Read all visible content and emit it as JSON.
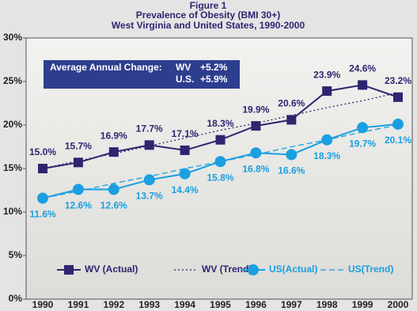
{
  "chart_data": {
    "type": "line",
    "title": "Figure 1",
    "subtitle": [
      "Prevalence of Obesity (BMI 30+)",
      "West Virginia and United States, 1990-2000"
    ],
    "categories": [
      "1990",
      "1991",
      "1992",
      "1993",
      "1994",
      "1995",
      "1996",
      "1997",
      "1998",
      "1999",
      "2000"
    ],
    "series": [
      {
        "name": "WV (Actual)",
        "color": "#2e2570",
        "style": "solid",
        "marker": "square",
        "values": [
          15.0,
          15.7,
          16.9,
          17.7,
          17.1,
          18.3,
          19.9,
          20.6,
          23.9,
          24.6,
          23.2
        ],
        "value_labels": [
          "15.0%",
          "15.7%",
          "16.9%",
          "17.7%",
          "17.1%",
          "18.3%",
          "19.9%",
          "20.6%",
          "23.9%",
          "24.6%",
          "23.2%"
        ],
        "label_side": "above"
      },
      {
        "name": "WV (Trend)",
        "color": "#2e2570",
        "style": "dotted",
        "values": [
          15.0,
          15.9,
          16.7,
          17.6,
          18.5,
          19.4,
          20.2,
          21.1,
          22.0,
          22.8,
          23.7
        ]
      },
      {
        "name": "US(Actual)",
        "color": "#1a9fe0",
        "style": "solid",
        "marker": "circle",
        "values": [
          11.6,
          12.6,
          12.6,
          13.7,
          14.4,
          15.8,
          16.8,
          16.6,
          18.3,
          19.7,
          20.1
        ],
        "value_labels": [
          "11.6%",
          "12.6%",
          "12.6%",
          "13.7%",
          "14.4%",
          "15.8%",
          "16.8%",
          "16.6%",
          "18.3%",
          "19.7%",
          "20.1%"
        ],
        "label_side": "below"
      },
      {
        "name": "US(Trend)",
        "color": "#1a9fe0",
        "style": "dashed",
        "values": [
          11.6,
          12.4,
          13.3,
          14.1,
          15.0,
          15.8,
          16.6,
          17.5,
          18.3,
          19.2,
          20.0
        ]
      }
    ],
    "ylim": [
      0,
      30
    ],
    "yticks": [
      {
        "value": 0,
        "label": "0%"
      },
      {
        "value": 5,
        "label": "5%"
      },
      {
        "value": 10,
        "label": "10%"
      },
      {
        "value": 15,
        "label": "15%"
      },
      {
        "value": 20,
        "label": "20%"
      },
      {
        "value": 25,
        "label": "25%"
      },
      {
        "value": 30,
        "label": "30%"
      }
    ],
    "grid": false,
    "annotation": {
      "label": "Average Annual Change:",
      "wv_label": "WV",
      "wv_value": "+5.2%",
      "us_label": "U.S.",
      "us_value": "+5.9%"
    }
  }
}
